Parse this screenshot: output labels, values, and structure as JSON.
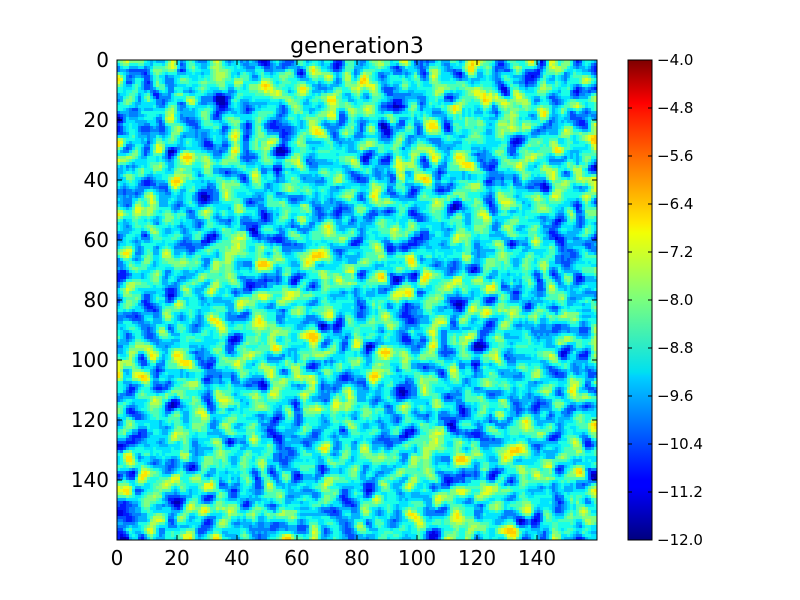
{
  "chart_data": {
    "type": "heatmap",
    "title": "generation3",
    "xlabel": "",
    "ylabel": "",
    "grid": false,
    "rows": 160,
    "cols": 160,
    "x_range": [
      0,
      160
    ],
    "y_range": [
      0,
      160
    ],
    "y_axis_inverted": true,
    "x_ticks": [
      "0",
      "20",
      "40",
      "60",
      "80",
      "100",
      "120",
      "140"
    ],
    "y_ticks": [
      "0",
      "20",
      "40",
      "60",
      "80",
      "100",
      "120",
      "140"
    ],
    "value_range": [
      -12.0,
      -4.0
    ],
    "value_mean": -9.0,
    "value_spread": 0.85,
    "colormap": "jet",
    "colorbar": {
      "min": -12.0,
      "max": -4.0,
      "ticks": [
        "−4.0",
        "−4.8",
        "−5.6",
        "−6.4",
        "−7.2",
        "−8.0",
        "−8.8",
        "−9.6",
        "−10.4",
        "−11.2",
        "−12.0"
      ],
      "tick_values": [
        -4.0,
        -4.8,
        -5.6,
        -6.4,
        -7.2,
        -8.0,
        -8.8,
        -9.6,
        -10.4,
        -11.2,
        -12.0
      ]
    }
  }
}
